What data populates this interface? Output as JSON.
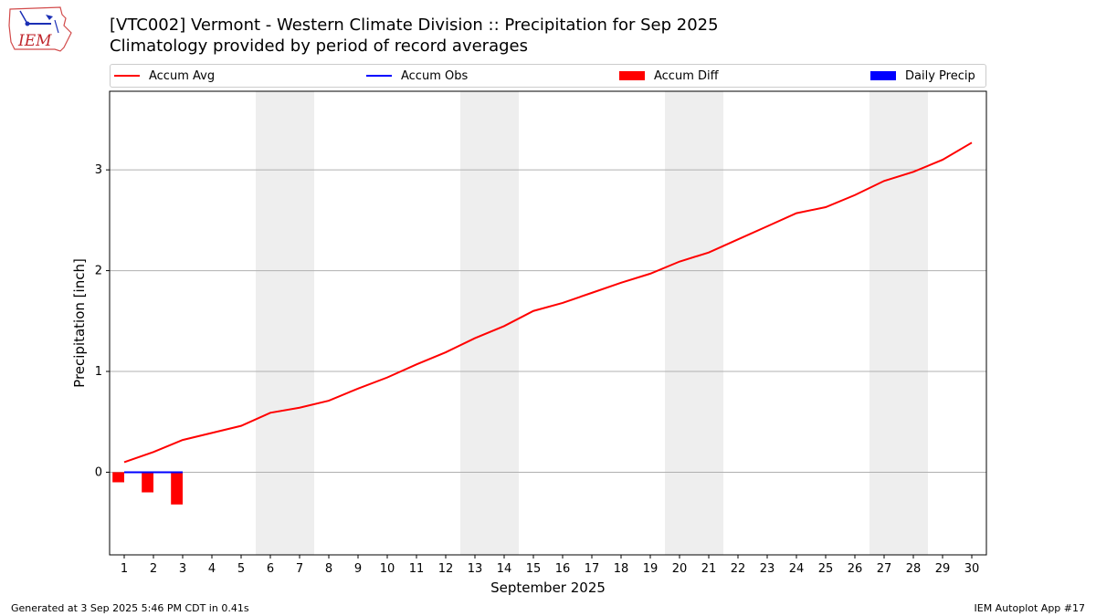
{
  "header": {
    "logo_text": "IEM",
    "title": "[VTC002] Vermont - Western Climate Division :: Precipitation for Sep 2025",
    "subtitle": "Climatology provided by period of record averages"
  },
  "legend": [
    {
      "label": "Accum Avg",
      "kind": "line",
      "color": "#ff0000"
    },
    {
      "label": "Accum Obs",
      "kind": "line",
      "color": "#0000ff"
    },
    {
      "label": "Accum Diff",
      "kind": "patch",
      "color": "#ff0000"
    },
    {
      "label": "Daily Precip",
      "kind": "patch",
      "color": "#0000ff"
    }
  ],
  "footer": {
    "left": "Generated at 3 Sep 2025 5:46 PM CDT in 0.41s",
    "right": "IEM Autoplot App #17"
  },
  "chart_data": {
    "type": "line",
    "title": "[VTC002] Vermont - Western Climate Division :: Precipitation for Sep 2025",
    "subtitle": "Climatology provided by period of record averages",
    "xlabel": "September 2025",
    "ylabel": "Precipitation [inch]",
    "x": [
      1,
      2,
      3,
      4,
      5,
      6,
      7,
      8,
      9,
      10,
      11,
      12,
      13,
      14,
      15,
      16,
      17,
      18,
      19,
      20,
      21,
      22,
      23,
      24,
      25,
      26,
      27,
      28,
      29,
      30
    ],
    "xlim": [
      0.5,
      30.5
    ],
    "ylim": [
      -0.82,
      3.78
    ],
    "yticks": [
      0,
      1,
      2,
      3
    ],
    "grid": "y",
    "legend_position": "top",
    "weekend_shading": [
      [
        5.5,
        7.5
      ],
      [
        12.5,
        14.5
      ],
      [
        19.5,
        21.5
      ],
      [
        26.5,
        28.5
      ]
    ],
    "series": [
      {
        "name": "Accum Avg",
        "type": "line",
        "color": "#ff0000",
        "x": [
          1,
          2,
          3,
          4,
          5,
          6,
          7,
          8,
          9,
          10,
          11,
          12,
          13,
          14,
          15,
          16,
          17,
          18,
          19,
          20,
          21,
          22,
          23,
          24,
          25,
          26,
          27,
          28,
          29,
          30
        ],
        "values": [
          0.1,
          0.2,
          0.32,
          0.39,
          0.46,
          0.59,
          0.64,
          0.71,
          0.83,
          0.94,
          1.07,
          1.19,
          1.33,
          1.45,
          1.6,
          1.68,
          1.78,
          1.88,
          1.97,
          2.09,
          2.18,
          2.31,
          2.44,
          2.57,
          2.63,
          2.75,
          2.89,
          2.98,
          3.1,
          3.27
        ]
      },
      {
        "name": "Accum Obs",
        "type": "line",
        "color": "#0000ff",
        "x": [
          1,
          2,
          3
        ],
        "values": [
          0.0,
          0.0,
          0.0
        ]
      },
      {
        "name": "Accum Diff",
        "type": "bar",
        "color": "#ff0000",
        "x": [
          1,
          2,
          3
        ],
        "values": [
          -0.1,
          -0.2,
          -0.32
        ]
      },
      {
        "name": "Daily Precip",
        "type": "bar",
        "color": "#0000ff",
        "x": [
          1,
          2,
          3
        ],
        "values": [
          0.0,
          0.0,
          0.0
        ]
      }
    ]
  }
}
